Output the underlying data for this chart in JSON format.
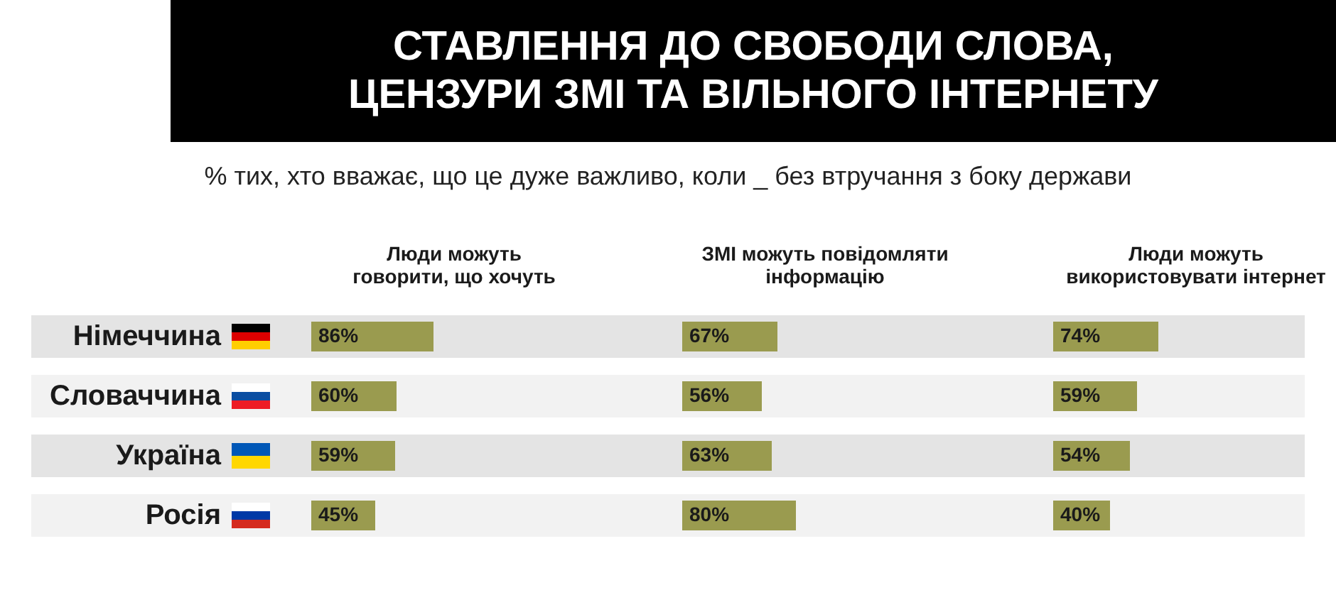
{
  "chart_data": [
    {
      "type": "bar",
      "orientation": "horizontal",
      "title": "СТАВЛЕННЯ ДО СВОБОДИ СЛОВА, ЦЕНЗУРИ ЗМІ ТА ВІЛЬНОГО ІНТЕРНЕТУ",
      "subtitle": "% тих, хто вважає, що це дуже важливо, коли _ без втручання з боку держави",
      "xlabel": "Люди можуть говорити, що хочуть",
      "categories": [
        "Німеччина",
        "Словаччина",
        "Україна",
        "Росія"
      ],
      "values": [
        86,
        60,
        59,
        45
      ],
      "value_labels": [
        "86%",
        "60%",
        "59%",
        "45%"
      ],
      "color": "#9a9b4f",
      "tick_labels": "y"
    },
    {
      "type": "bar",
      "orientation": "horizontal",
      "xlabel": "ЗМІ можуть повідомляти інформацію",
      "categories": [
        "Німеччина",
        "Словаччина",
        "Україна",
        "Росія"
      ],
      "values": [
        67,
        56,
        63,
        80
      ],
      "value_labels": [
        "67%",
        "56%",
        "63%",
        "80%"
      ],
      "color": "#9a9b4f",
      "tick_labels": false
    },
    {
      "type": "bar",
      "orientation": "horizontal",
      "xlabel": "Люди можуть використовувати інтернет",
      "categories": [
        "Німеччина",
        "Словаччина",
        "Україна",
        "Росія"
      ],
      "values": [
        74,
        59,
        54,
        40
      ],
      "value_labels": [
        "74%",
        "59%",
        "54%",
        "40%"
      ],
      "color": "#9a9b4f",
      "tick_labels": false
    }
  ]
}
